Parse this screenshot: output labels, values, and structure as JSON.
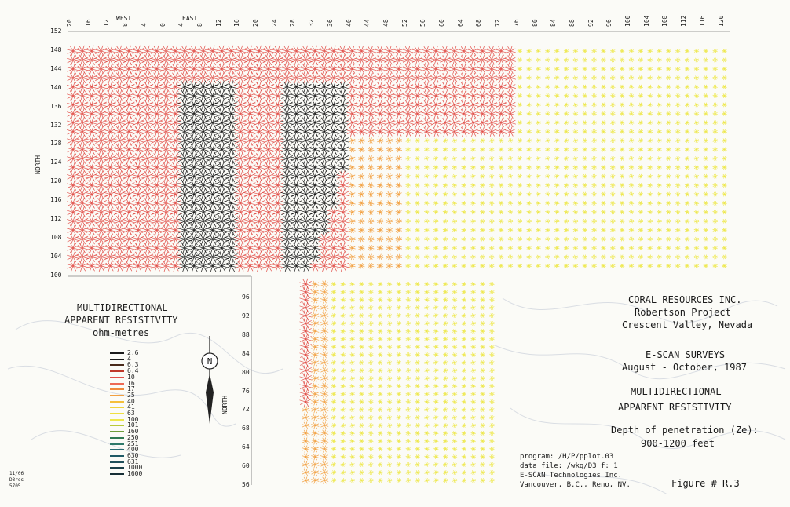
{
  "east_ticks": [
    "20",
    "16",
    "12",
    "8",
    "4",
    "0",
    "4",
    "8",
    "12",
    "16",
    "20",
    "24",
    "28",
    "32",
    "36",
    "40",
    "44",
    "48",
    "52",
    "56",
    "60",
    "64",
    "68",
    "72",
    "76",
    "80",
    "84",
    "88",
    "92",
    "96",
    "100",
    "104",
    "108",
    "112",
    "116",
    "120"
  ],
  "west_label": "WEST",
  "east_label": "EAST",
  "north_ticks_upper": [
    "152",
    "148",
    "144",
    "140",
    "136",
    "132",
    "128",
    "124",
    "120",
    "116",
    "112",
    "108",
    "104",
    "100"
  ],
  "north_ticks_lower": [
    "96",
    "92",
    "88",
    "84",
    "80",
    "76",
    "72",
    "68",
    "64",
    "60",
    "56"
  ],
  "north_label_upper": "NORTH",
  "north_label_lower": "NORTH",
  "legend": {
    "title_lines": [
      "MULTIDIRECTIONAL",
      "APPARENT RESISTIVITY",
      "ohm-metres"
    ],
    "items": [
      {
        "label": "2.6",
        "color": "#1a1a1a"
      },
      {
        "label": "4",
        "color": "#1a1a1a"
      },
      {
        "label": "6.3",
        "color": "#4a2a1a"
      },
      {
        "label": "6.4",
        "color": "#c0392b"
      },
      {
        "label": "10",
        "color": "#e2504a"
      },
      {
        "label": "16",
        "color": "#ee6a55"
      },
      {
        "label": "17",
        "color": "#f08a3c"
      },
      {
        "label": "25",
        "color": "#f2a040"
      },
      {
        "label": "40",
        "color": "#f5bf3a"
      },
      {
        "label": "41",
        "color": "#f2d43a"
      },
      {
        "label": "63",
        "color": "#efe040"
      },
      {
        "label": "100",
        "color": "#eee84c"
      },
      {
        "label": "101",
        "color": "#b9c93a"
      },
      {
        "label": "160",
        "color": "#6f9e3a"
      },
      {
        "label": "250",
        "color": "#2f7a52"
      },
      {
        "label": "251",
        "color": "#2f7a6a"
      },
      {
        "label": "400",
        "color": "#2b6d74"
      },
      {
        "label": "630",
        "color": "#1f5a66"
      },
      {
        "label": "631",
        "color": "#1f4f5a"
      },
      {
        "label": "1000",
        "color": "#1a3f48"
      },
      {
        "label": "1600",
        "color": "#172f36"
      }
    ]
  },
  "title_block": {
    "company": "CORAL RESOURCES INC.",
    "project": "Robertson Project",
    "location": "Crescent Valley, Nevada",
    "survey": "E-SCAN SURVEYS",
    "dates": "August - October, 1987",
    "map_title_1": "MULTIDIRECTIONAL",
    "map_title_2": "APPARENT RESISTIVITY",
    "depth_label": "Depth of penetration (Ze):",
    "depth_value": "900-1200 feet",
    "figure": "Figure # R.3"
  },
  "footnote": {
    "program": "program: /H/P/pplot.03",
    "datafile": "data file: /wkg/D3 f: 1",
    "company": "E-SCAN Technologies Inc.",
    "address": "Vancouver, B.C., Reno, NV."
  },
  "corner_note": [
    "11/06",
    "D3res",
    "5705"
  ],
  "north_arrow_letter": "N",
  "colors": {
    "very_low": "#1a1a1a",
    "low": "#e2504a",
    "mid_low": "#f2a040",
    "mid": "#eee84c",
    "high": "#2f7a6a",
    "paper": "#fbfbf7"
  }
}
